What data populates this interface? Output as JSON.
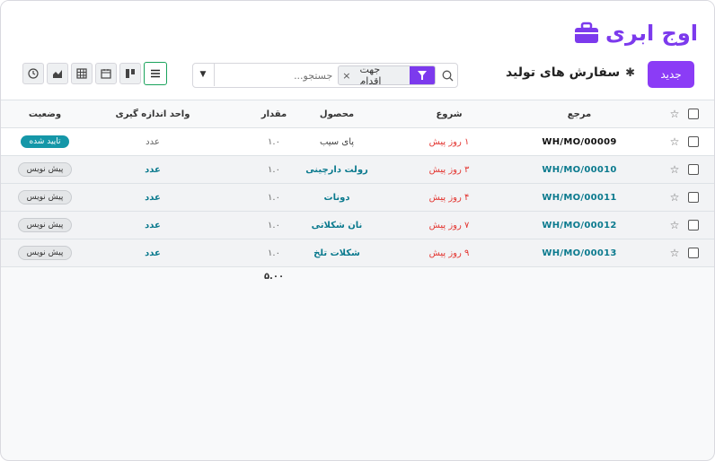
{
  "brand": {
    "logo_text": "اوج ابری",
    "accent": "#8b3cf6"
  },
  "header": {
    "title": "سفارش های تولید",
    "new_label": "جدید",
    "settings_icon": "gear-icon"
  },
  "search": {
    "placeholder": "جستجو...",
    "facet_label": "جهت اقدام",
    "facet_icon": "filter-icon",
    "remove": "×"
  },
  "views": [
    "list-view-icon",
    "kanban-view-icon",
    "calendar-view-icon",
    "pivot-view-icon",
    "graph-view-icon",
    "activity-view-icon"
  ],
  "table": {
    "columns": {
      "reference": "مرجع",
      "start": "شروع",
      "product": "محصول",
      "quantity": "مقدار",
      "uom": "واحد اندازه گیری",
      "status": "وضعیت"
    },
    "rows": [
      {
        "reference": "WH/MO/00009",
        "start": "۱ روز پیش",
        "product": "پای سیب",
        "quantity": "۱.۰",
        "uom": "عدد",
        "status": "تایید شده"
      },
      {
        "reference": "WH/MO/00010",
        "start": "۳ روز پیش",
        "product": "رولت دارچینی",
        "quantity": "۱.۰",
        "uom": "عدد",
        "status": "پیش نویس"
      },
      {
        "reference": "WH/MO/00011",
        "start": "۴ روز پیش",
        "product": "دونات",
        "quantity": "۱.۰",
        "uom": "عدد",
        "status": "پیش نویس"
      },
      {
        "reference": "WH/MO/00012",
        "start": "۷ روز پیش",
        "product": "نان شکلاتی",
        "quantity": "۱.۰",
        "uom": "عدد",
        "status": "پیش نویس"
      },
      {
        "reference": "WH/MO/00013",
        "start": "۹ روز پیش",
        "product": "شکلات تلخ",
        "quantity": "۱.۰",
        "uom": "عدد",
        "status": "پیش نویس"
      }
    ],
    "total_quantity": "۵.۰۰"
  }
}
